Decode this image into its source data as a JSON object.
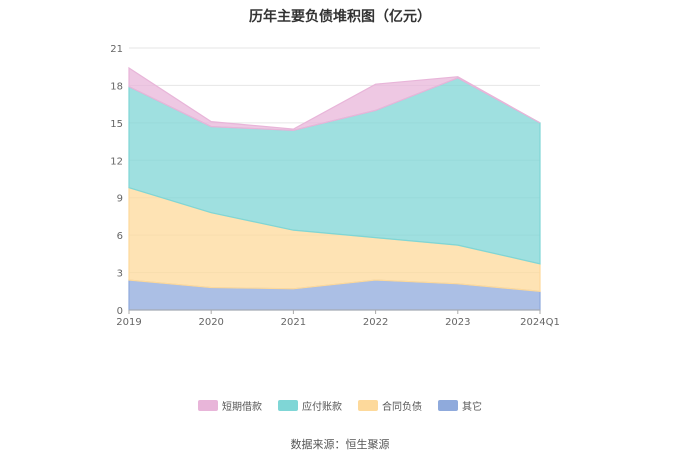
{
  "chart_data": {
    "type": "area",
    "stacked": true,
    "title": "历年主要负债堆积图（亿元）",
    "categories": [
      "2019",
      "2020",
      "2021",
      "2022",
      "2023",
      "2024Q1"
    ],
    "ylim": [
      0,
      21
    ],
    "yticks": [
      "0",
      "3",
      "6",
      "9",
      "12",
      "15",
      "18",
      "21"
    ],
    "grid": true,
    "legend_position": "bottom",
    "series": [
      {
        "name": "其它",
        "color": "#8faadc",
        "values": [
          2.4,
          1.8,
          1.7,
          2.4,
          2.1,
          1.5
        ]
      },
      {
        "name": "合同负债",
        "color": "#fdd99b",
        "values": [
          7.4,
          6.0,
          4.7,
          3.4,
          3.1,
          2.2
        ]
      },
      {
        "name": "应付账款",
        "color": "#7fd6d6",
        "values": [
          8.1,
          6.9,
          8.0,
          10.2,
          13.4,
          11.3
        ]
      },
      {
        "name": "短期借款",
        "color": "#e8b5d9",
        "values": [
          1.5,
          0.4,
          0.1,
          2.1,
          0.1,
          0.0
        ]
      }
    ],
    "legend_order": [
      "短期借款",
      "应付账款",
      "合同负债",
      "其它"
    ]
  },
  "source": "数据来源：恒生聚源"
}
